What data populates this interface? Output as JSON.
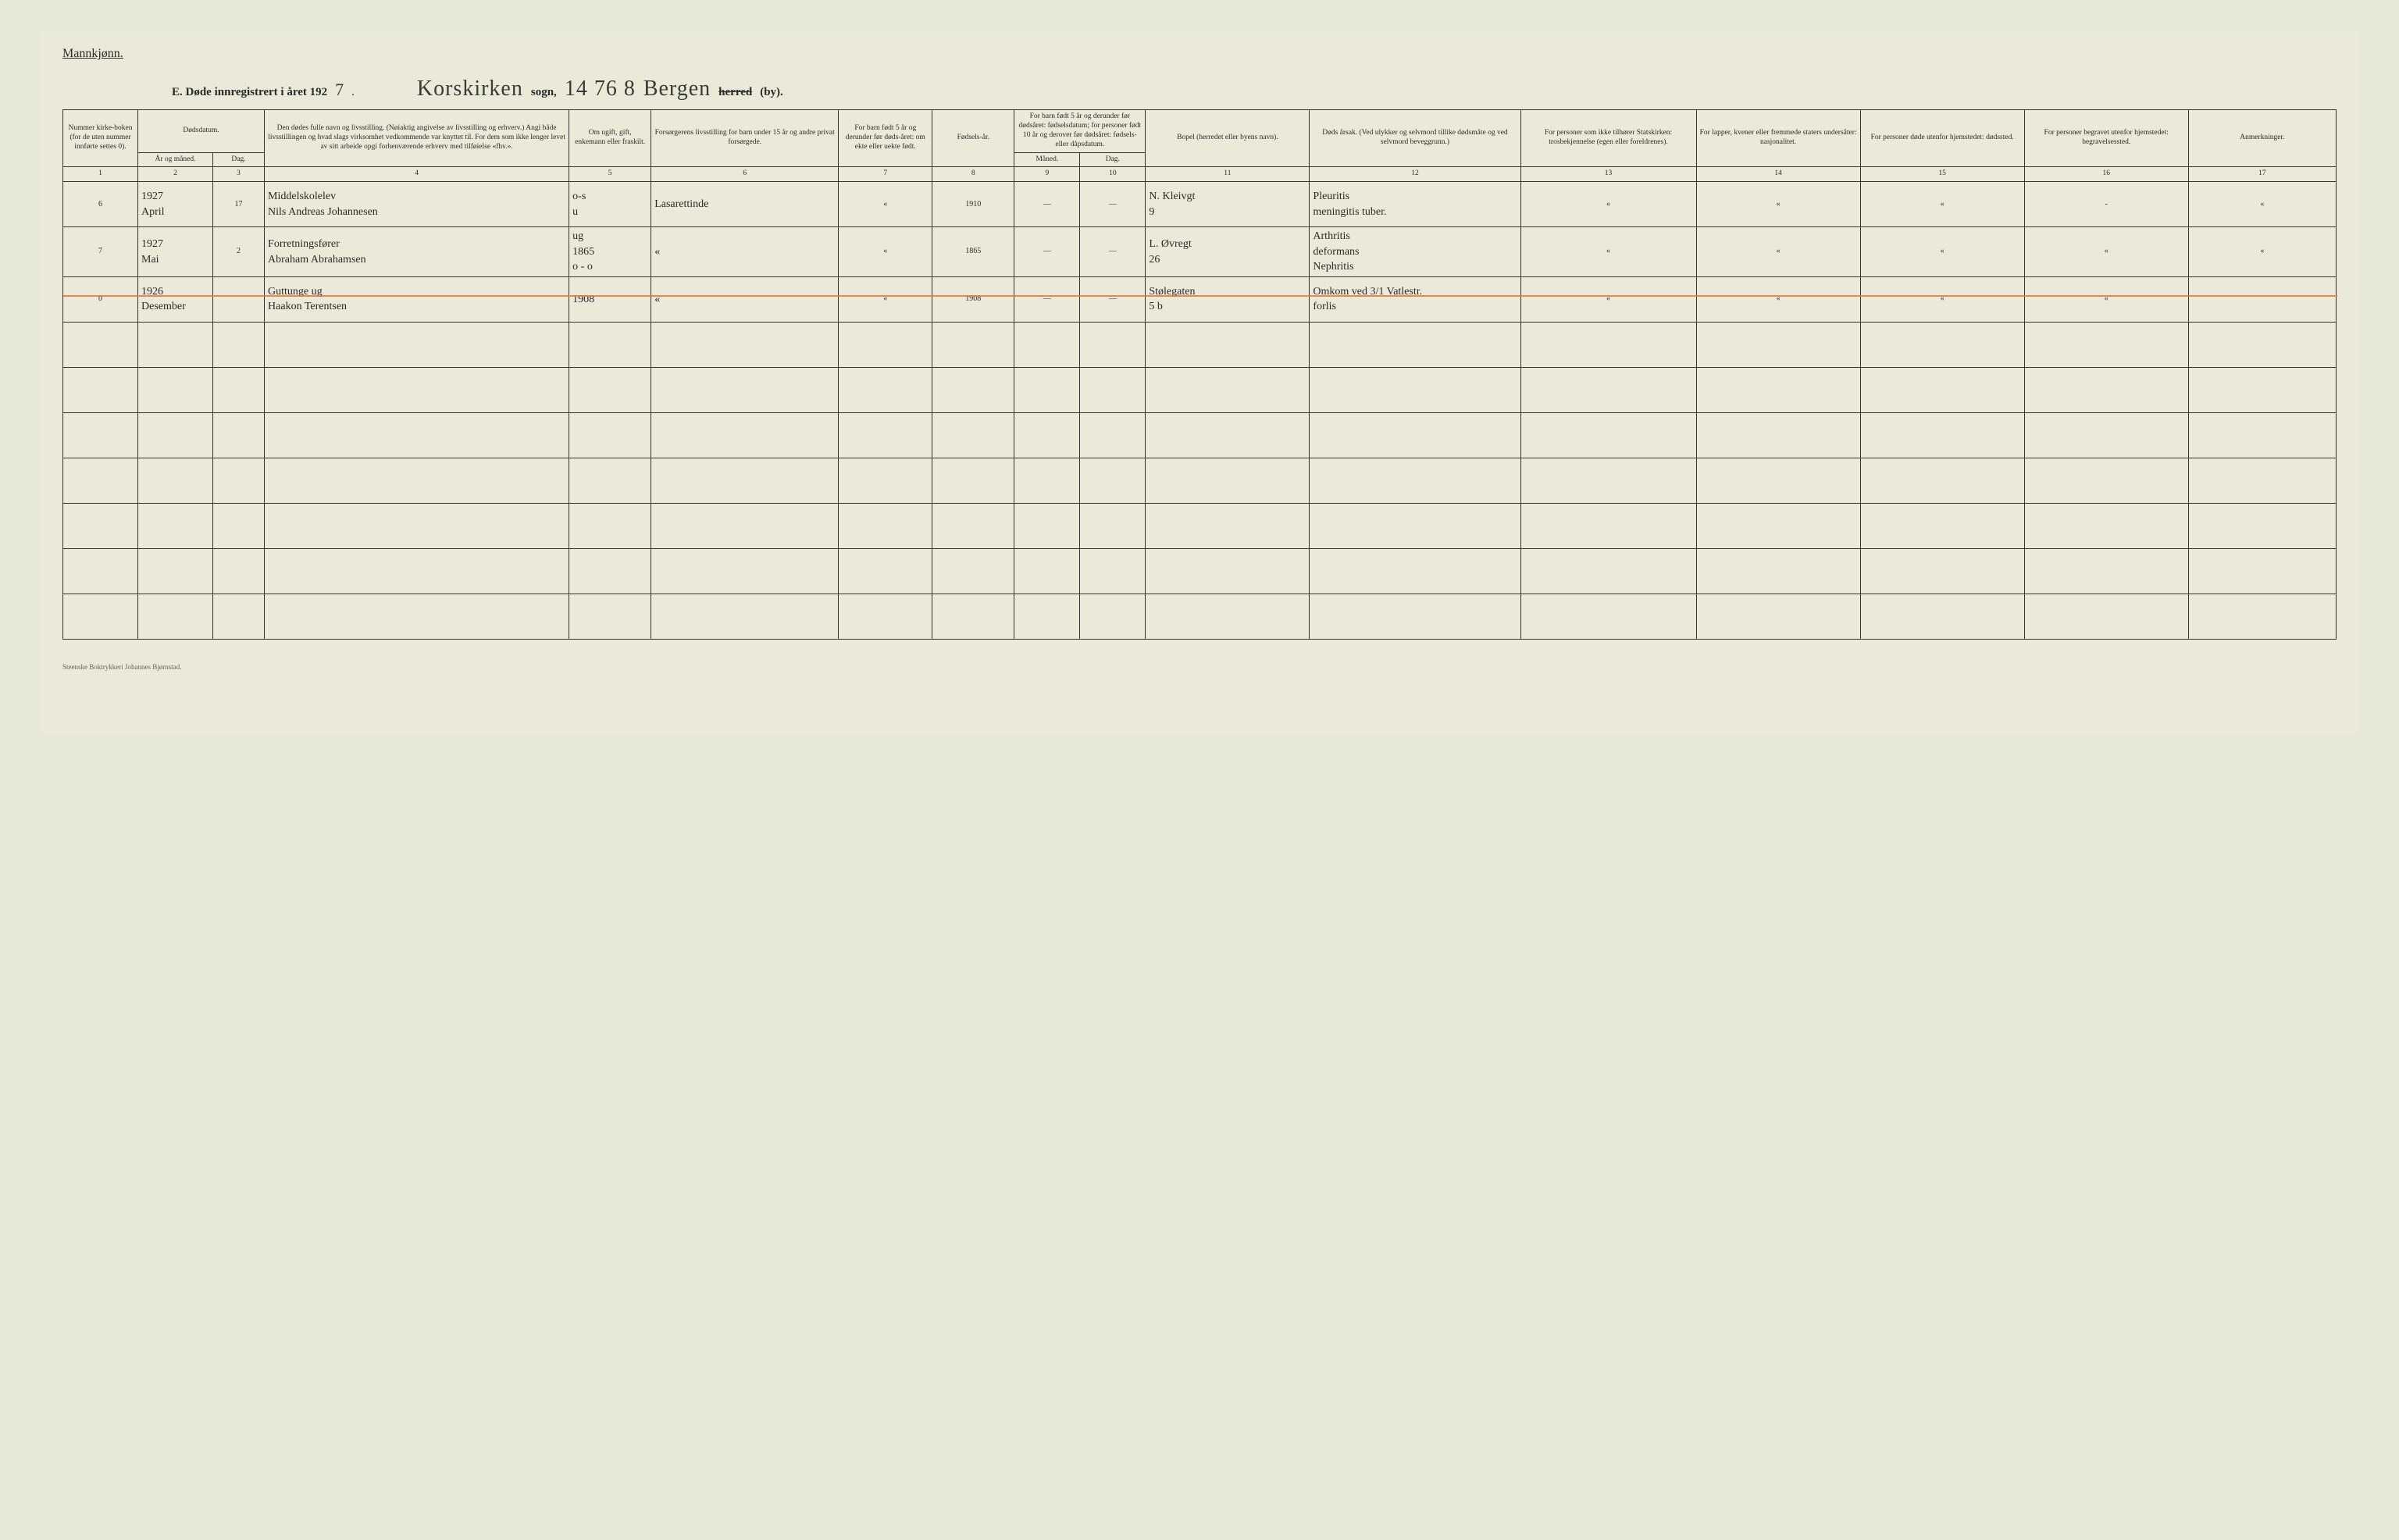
{
  "header": {
    "gender": "Mannkjønn.",
    "title_prefix": "E.   Døde innregistrert i året 192",
    "year_suffix": "7",
    "sogn_word": "sogn,",
    "sogn_handwritten": "Korskirken",
    "code_handwritten": "14 76 8",
    "place_handwritten": "Bergen",
    "herred_struck": "herred",
    "by": "(by)."
  },
  "columns": {
    "c1": "Nummer kirke-boken (for de uten nummer innførte settes 0).",
    "c2_top": "Dødsdatum.",
    "c2a": "År og måned.",
    "c2b": "Dag.",
    "c4": "Den dødes fulle navn og livsstilling.\n(Nøiaktig angivelse av livsstilling og erhverv.)\nAngi både livsstillingen og hvad slags virksomhet vedkommende var knyttet til.\nFor dem som ikke lenger levet av sitt arbeide opgi forhenværende erhverv med tilføielse «fhv.».",
    "c5": "Om ugift, gift, enkemann eller fraskilt.",
    "c6": "Forsørgerens livsstilling for barn under 15 år og andre privat forsørgede.",
    "c7": "For barn født 5 år og derunder før døds-året: om ekte eller uekte født.",
    "c8": "Fødsels-år.",
    "c9_top": "For barn født 5 år og derunder før dødsåret: fødselsdatum; for personer født 10 år og derover før dødsåret: fødsels- eller dåpsdatum.",
    "c9a": "Måned.",
    "c9b": "Dag.",
    "c11": "Bopel (herredet eller byens navn).",
    "c12": "Døds årsak.\n(Ved ulykker og selvmord tillike dødsmåte og ved selvmord beveggrunn.)",
    "c13": "For personer som ikke tilhører Statskirken: trosbekjennelse (egen eller foreldrenes).",
    "c14": "For lapper, kvener eller fremmede staters undersåter: nasjonalitet.",
    "c15": "For personer døde utenfor hjemstedet: dødssted.",
    "c16": "For personer begravet utenfor hjemstedet: begravelsessted.",
    "c17": "Anmerkninger."
  },
  "colnums": [
    "1",
    "2",
    "3",
    "4",
    "5",
    "6",
    "7",
    "8",
    "9",
    "10",
    "11",
    "12",
    "13",
    "14",
    "15",
    "16",
    "17"
  ],
  "rows": [
    {
      "num": "6",
      "year_month": "1927\nApril",
      "day": "17",
      "name": "Middelskolelev\nNils Andreas Johannesen",
      "status": "o-s\nu",
      "forsorger": "Lasarettinde",
      "ekte": "«",
      "faar": "1910",
      "fmnd": "—",
      "fdag": "—",
      "bopel": "N. Kleivgt\n9",
      "cause": "Pleuritis\nmeningitis tuber.",
      "c13": "«",
      "c14": "«",
      "c15": "«",
      "c16": "-",
      "c17": "«"
    },
    {
      "num": "7",
      "year_month": "1927\nMai",
      "day": "2",
      "name": "Forretningsfører\nAbraham Abrahamsen",
      "status": "ug\n1865\no - o",
      "forsorger": "«",
      "ekte": "«",
      "faar": "1865",
      "fmnd": "—",
      "fdag": "—",
      "bopel": "L. Øvregt\n26",
      "cause": "Arthritis\ndeformans\nNephritis",
      "c13": "«",
      "c14": "«",
      "c15": "«",
      "c16": "«",
      "c17": "«"
    },
    {
      "num": "0",
      "year_month": "1926\nDesember",
      "day": "",
      "name": "Guttunge  ug\nHaakon Terentsen",
      "status": "1908",
      "forsorger": "«",
      "ekte": "«",
      "faar": "1908",
      "fmnd": "—",
      "fdag": "—",
      "bopel": "Stølegaten\n5 b",
      "cause": "Omkom ved 3/1 Vatlestr.\nforlis",
      "c13": "«",
      "c14": "«",
      "c15": "«",
      "c16": "«",
      "c17": ""
    }
  ],
  "empty_rows": 7,
  "printer": "Steenske Boktrykkeri Johannes Bjørnstad.",
  "colors": {
    "red_line": "#e07a3a",
    "page_bg": "#ebe9d7",
    "ink": "#2a2a2a"
  }
}
